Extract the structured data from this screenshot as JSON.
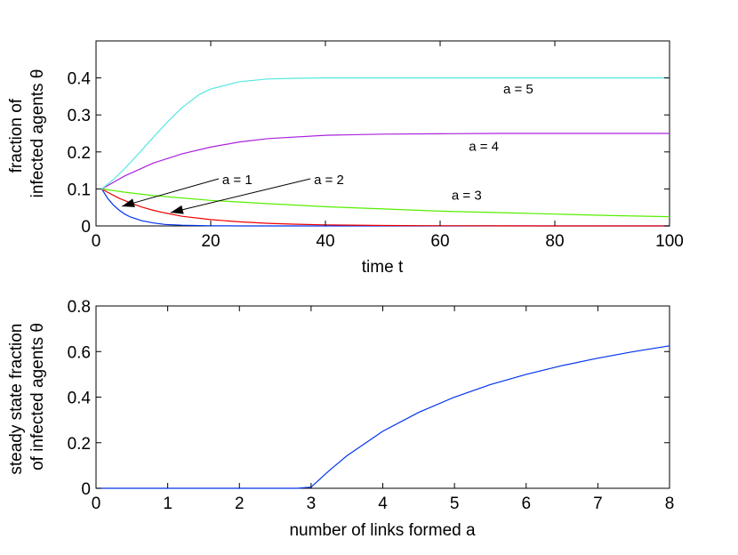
{
  "chart_data": [
    {
      "type": "line",
      "xlabel": "time t",
      "ylabel_lines": [
        "fraction of",
        "infected agents θ"
      ],
      "xlim": [
        0,
        100
      ],
      "ylim": [
        0,
        0.5
      ],
      "xticks": [
        "0",
        "20",
        "40",
        "60",
        "80",
        "100"
      ],
      "xtick_values": [
        0,
        20,
        40,
        60,
        80,
        100
      ],
      "yticks": [
        "0",
        "0.1",
        "0.2",
        "0.3",
        "0.4"
      ],
      "ytick_values": [
        0,
        0.1,
        0.2,
        0.3,
        0.4
      ],
      "grid": false,
      "series": [
        {
          "color": "#0033ee",
          "x": [
            1,
            2,
            3,
            4,
            5,
            6,
            8,
            10,
            12,
            15,
            20,
            25,
            30,
            40,
            50,
            60,
            80,
            100
          ],
          "y": [
            0.1,
            0.075,
            0.057,
            0.043,
            0.032,
            0.024,
            0.014,
            0.008,
            0.004,
            0.002,
            0.0005,
            0.0001,
            0,
            0,
            0,
            0,
            0,
            0
          ]
        },
        {
          "color": "#ee0000",
          "x": [
            1,
            2,
            4,
            6,
            8,
            10,
            12,
            15,
            20,
            25,
            30,
            35,
            40,
            50,
            60,
            70,
            80,
            90,
            100
          ],
          "y": [
            0.1,
            0.091,
            0.075,
            0.062,
            0.051,
            0.042,
            0.035,
            0.026,
            0.017,
            0.011,
            0.007,
            0.0045,
            0.003,
            0.0013,
            0.0005,
            0.0002,
            0.0001,
            0,
            0
          ]
        },
        {
          "color": "#55ee00",
          "x": [
            1,
            5,
            10,
            20,
            30,
            40,
            50,
            60,
            70,
            80,
            90,
            100
          ],
          "y": [
            0.1,
            0.091,
            0.082,
            0.069,
            0.06,
            0.052,
            0.046,
            0.04,
            0.036,
            0.032,
            0.028,
            0.025
          ]
        },
        {
          "color": "#aa22dd",
          "x": [
            1,
            5,
            10,
            15,
            20,
            25,
            30,
            40,
            50,
            60,
            70,
            80,
            90,
            100
          ],
          "y": [
            0.1,
            0.135,
            0.17,
            0.195,
            0.213,
            0.227,
            0.236,
            0.245,
            0.248,
            0.249,
            0.25,
            0.25,
            0.25,
            0.25
          ]
        },
        {
          "color": "#55e8e0",
          "x": [
            1,
            3,
            5,
            8,
            10,
            13,
            15,
            18,
            20,
            25,
            30,
            35,
            40,
            50,
            60,
            70,
            80,
            90,
            100
          ],
          "y": [
            0.1,
            0.125,
            0.155,
            0.205,
            0.24,
            0.29,
            0.32,
            0.355,
            0.37,
            0.39,
            0.397,
            0.399,
            0.4,
            0.4,
            0.4,
            0.4,
            0.4,
            0.4,
            0.4
          ]
        }
      ],
      "annotations": [
        {
          "text": "a = 5",
          "x": 71,
          "y": 0.37
        },
        {
          "text": "a = 4",
          "x": 65,
          "y": 0.215
        },
        {
          "text": "a = 3",
          "x": 62,
          "y": 0.083
        },
        {
          "text": "a = 1",
          "x": 22,
          "y": 0.125,
          "arrow_to": [
            4.5,
            0.053
          ]
        },
        {
          "text": "a = 2",
          "x": 38,
          "y": 0.125,
          "arrow_to": [
            13,
            0.036
          ]
        }
      ]
    },
    {
      "type": "line",
      "xlabel": "number of links formed a",
      "ylabel_lines": [
        "steady state fraction",
        "of infected agents θ"
      ],
      "xlim": [
        0,
        8
      ],
      "ylim": [
        0,
        0.8
      ],
      "xticks": [
        "0",
        "1",
        "2",
        "3",
        "4",
        "5",
        "6",
        "7",
        "8"
      ],
      "xtick_values": [
        0,
        1,
        2,
        3,
        4,
        5,
        6,
        7,
        8
      ],
      "yticks": [
        "0",
        "0.2",
        "0.4",
        "0.6",
        "0.8"
      ],
      "ytick_values": [
        0,
        0.2,
        0.4,
        0.6,
        0.8
      ],
      "grid": false,
      "series": [
        {
          "color": "#0033ee",
          "x": [
            0,
            1,
            2,
            2.8,
            3,
            3.25,
            3.5,
            4,
            4.5,
            5,
            5.5,
            6,
            6.5,
            7,
            7.5,
            8
          ],
          "y": [
            0,
            0,
            0,
            0,
            0.005,
            0.077,
            0.143,
            0.25,
            0.333,
            0.4,
            0.455,
            0.5,
            0.538,
            0.571,
            0.6,
            0.625
          ]
        }
      ]
    }
  ]
}
